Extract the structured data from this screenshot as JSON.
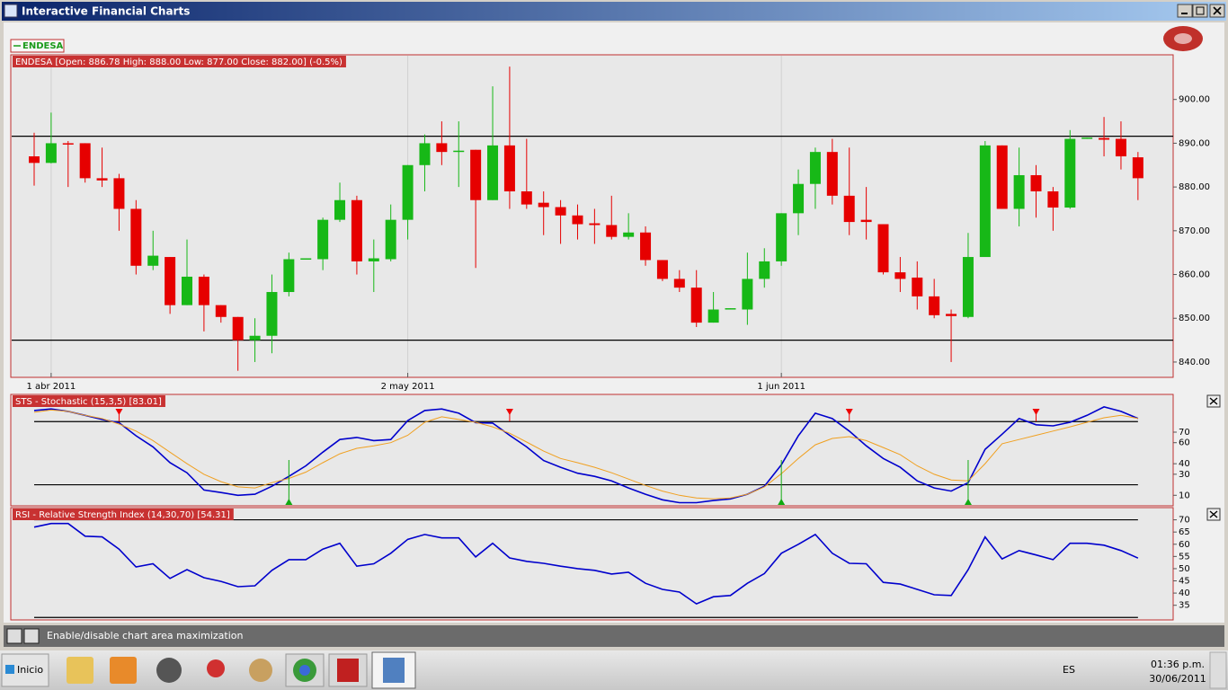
{
  "window": {
    "title": "Interactive Financial Charts"
  },
  "status": "Enable/disable chart area maximization",
  "taskbar": {
    "start": "Inicio",
    "language": "ES",
    "time": "01:36 p.m.",
    "date": "30/06/2011"
  },
  "chart_data": [
    {
      "type": "candlestick",
      "title": "ENDESA [Open: 886.78  High: 888.00  Low: 877.00  Close: 882.00] (-0.5%)",
      "categories": [
        null,
        "1 abr 2011",
        null,
        null,
        null,
        null,
        null,
        null,
        null,
        null,
        null,
        null,
        null,
        null,
        null,
        null,
        null,
        null,
        null,
        null,
        null,
        null,
        "2 may 2011",
        null,
        null,
        null,
        null,
        null,
        null,
        null,
        null,
        null,
        null,
        null,
        null,
        null,
        null,
        null,
        null,
        null,
        null,
        null,
        null,
        null,
        "1 jun 2011",
        null,
        null,
        null,
        null,
        null,
        null,
        null,
        null,
        null,
        null,
        null,
        null,
        null,
        null,
        null,
        null,
        null,
        null,
        null,
        null,
        null
      ],
      "series": [
        {
          "name": "ENDESA",
          "color": "#1a9a1a",
          "up_color": "#17b817",
          "down_color": "#e60000",
          "open": [
            887,
            885.5,
            890,
            890,
            882,
            882,
            875,
            862,
            864,
            853,
            859.5,
            853,
            850.3,
            845,
            846,
            856,
            863.5,
            863.5,
            872.5,
            877,
            863,
            863.5,
            872.5,
            885,
            890,
            888,
            888.5,
            877,
            889.5,
            879,
            876.4,
            875.4,
            873.5,
            871.7,
            871.3,
            868.6,
            869.6,
            863.3,
            859,
            857,
            849,
            852,
            852,
            859,
            863,
            874,
            880.7,
            888,
            878,
            872.5,
            871.5,
            860.5,
            859.3,
            855,
            851,
            850.3,
            864,
            889.5,
            875,
            882.7,
            879,
            875.3,
            891,
            891.2,
            891,
            886.78
          ],
          "high": [
            892.4,
            897,
            890.5,
            890,
            889,
            883,
            877,
            870,
            864,
            868,
            860,
            853,
            850.3,
            850,
            860,
            865,
            863.7,
            873,
            881,
            878,
            868,
            876,
            885,
            892,
            895,
            895,
            888.5,
            903,
            907.5,
            891,
            879,
            877,
            876,
            875,
            878,
            874,
            871,
            863.3,
            861,
            861,
            856,
            852.3,
            865,
            866,
            874,
            884,
            889,
            891,
            889,
            880,
            871.5,
            864,
            863,
            859,
            852,
            869.5,
            890.5,
            889.5,
            889,
            885,
            880,
            893,
            891.3,
            896,
            895,
            888
          ],
          "low": [
            880.3,
            885.4,
            880,
            881,
            880,
            870,
            860,
            861,
            851,
            853,
            847,
            849,
            838,
            840,
            842,
            855,
            863.5,
            861,
            872,
            860,
            856,
            863,
            868,
            879,
            885,
            880,
            861.5,
            877,
            875,
            875,
            869,
            867,
            868,
            867,
            868,
            868,
            862,
            858.5,
            856,
            848,
            849,
            852,
            848.5,
            857,
            862,
            869,
            875,
            876,
            869,
            868,
            860,
            856,
            852,
            850,
            840,
            850,
            864,
            875,
            871,
            873,
            870,
            875,
            891,
            887,
            884,
            877
          ],
          "close": [
            885.5,
            890,
            889.7,
            882,
            881.5,
            875,
            862,
            864.3,
            853,
            859.5,
            853,
            850.3,
            845,
            846,
            856,
            863.5,
            863.7,
            872.5,
            877,
            863,
            863.7,
            872.5,
            885,
            890,
            888,
            888.3,
            877,
            889.5,
            879,
            876,
            875.4,
            873.5,
            871.5,
            871.3,
            868.6,
            869.6,
            863.3,
            859,
            857,
            849,
            852,
            852.3,
            859,
            863,
            874,
            880.7,
            888,
            878,
            872,
            872,
            860.5,
            859,
            855,
            850.7,
            850.5,
            864,
            889.5,
            875,
            882.7,
            879,
            875.3,
            891,
            891.3,
            890.8,
            887,
            882
          ]
        }
      ],
      "ylim": [
        836.5,
        910
      ],
      "yticks": [
        {
          "value": 840,
          "label": "840.00"
        },
        {
          "value": 850,
          "label": "850.00"
        },
        {
          "value": 860,
          "label": "860.00"
        },
        {
          "value": 870,
          "label": "870.00"
        },
        {
          "value": 880,
          "label": "880.00"
        },
        {
          "value": 890,
          "label": "890.00"
        },
        {
          "value": 900,
          "label": "900.00"
        }
      ],
      "hlines": [
        891.6,
        845
      ],
      "grid": true
    },
    {
      "type": "line",
      "title": "STS - Stochastic (15,3,5) [83.01]",
      "series": [
        {
          "color": "#0000cc",
          "values": [
            90.6,
            92,
            89.7,
            86,
            82,
            79,
            66.6,
            56,
            41,
            31.4,
            15,
            12.6,
            10,
            11,
            18.6,
            28,
            38,
            51,
            63,
            65,
            62,
            63,
            81,
            90.6,
            92,
            88,
            79,
            78.6,
            67,
            56,
            43,
            36.6,
            31,
            28,
            23.7,
            17,
            11,
            5.7,
            3,
            3,
            5,
            6.6,
            11,
            18.6,
            39,
            66.6,
            88,
            83,
            71,
            57,
            45,
            36.6,
            23.7,
            17,
            14,
            22,
            53.7,
            68,
            83,
            77,
            76,
            79.4,
            86,
            94,
            89.7,
            83.01
          ]
        },
        {
          "color": "#f0a020",
          "values": [
            88.9,
            91,
            89.7,
            86,
            83,
            77.7,
            71,
            62,
            51,
            40,
            30,
            23,
            18,
            17,
            22,
            26,
            32,
            41,
            49.4,
            54.6,
            57,
            60,
            67,
            79.4,
            84.6,
            82,
            79.4,
            75,
            69,
            60.6,
            52,
            45,
            41,
            36.6,
            31.4,
            25.4,
            19.4,
            14,
            10,
            7.4,
            6.6,
            7.4,
            11,
            18,
            30.6,
            45,
            58,
            64,
            65.7,
            62,
            55.4,
            48.6,
            38,
            30,
            24.6,
            23.7,
            40,
            59,
            63,
            67,
            71,
            75,
            79.4,
            83.7,
            86,
            83
          ]
        }
      ],
      "sell_signals": [
        5,
        28,
        48,
        59
      ],
      "buy_signals": [
        15,
        44,
        55
      ],
      "ylim": [
        0,
        105
      ],
      "yticks": [
        10,
        30,
        40,
        60,
        70
      ],
      "hlines": [
        80,
        20
      ]
    },
    {
      "type": "line",
      "title": "RSI - Relative Strength Index (14,30,70) [54.31]",
      "series": [
        {
          "color": "#0000cc",
          "values": [
            67,
            68.5,
            68.5,
            63.3,
            63,
            58,
            50.7,
            52,
            46,
            49.6,
            46.3,
            44.8,
            42.6,
            43,
            49.3,
            53.7,
            53.7,
            58,
            60.4,
            51,
            52,
            56.3,
            62,
            64,
            62.6,
            62.6,
            54.8,
            60.4,
            54.4,
            53,
            52.2,
            51,
            50,
            49.3,
            47.8,
            48.5,
            44,
            41.5,
            40.4,
            35.6,
            38.5,
            39,
            44,
            48,
            56.3,
            60,
            64,
            56.3,
            52.2,
            52,
            44.4,
            43.7,
            41.5,
            39.3,
            39,
            49.6,
            63,
            54,
            57.4,
            55.6,
            53.7,
            60.4,
            60.4,
            59.6,
            57.4,
            54.31
          ]
        }
      ],
      "ylim": [
        29,
        75
      ],
      "yticks": [
        35,
        40,
        45,
        50,
        55,
        60,
        65,
        70
      ],
      "hlines": [
        70,
        30
      ]
    }
  ]
}
